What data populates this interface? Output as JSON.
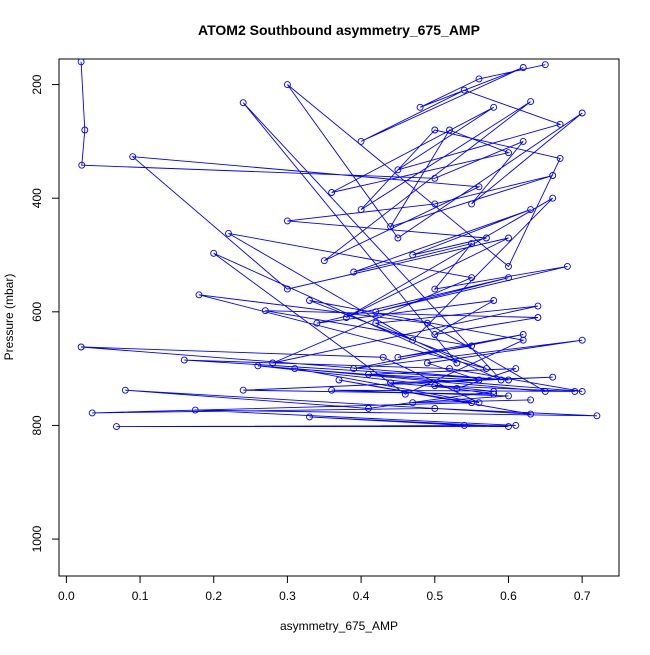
{
  "chart_data": {
    "type": "line",
    "title": "ATOM2 Southbound asymmetry_675_AMP",
    "xlabel": "asymmetry_675_AMP",
    "ylabel": "Pressure (mbar)",
    "xlim": [
      -0.01,
      0.75
    ],
    "ylim": [
      1065,
      155
    ],
    "y_reversed": true,
    "x_ticks": [
      "0.0",
      "0.1",
      "0.2",
      "0.3",
      "0.4",
      "0.5",
      "0.6",
      "0.7"
    ],
    "x_tick_values": [
      0.0,
      0.1,
      0.2,
      0.3,
      0.4,
      0.5,
      0.6,
      0.7
    ],
    "y_ticks": [
      "200",
      "400",
      "600",
      "800",
      "1000"
    ],
    "y_tick_values": [
      200,
      400,
      600,
      800,
      1000
    ],
    "grid": false,
    "color": "#0000ff",
    "series": [
      {
        "x": [
          0.02,
          0.025,
          0.021,
          0.5,
          0.62,
          0.55,
          0.7,
          0.45,
          0.3,
          0.6,
          0.67,
          0.5,
          0.4,
          0.63,
          0.35,
          0.56,
          0.09,
          0.3,
          0.6,
          0.38,
          0.66,
          0.47,
          0.22,
          0.55,
          0.28,
          0.64,
          0.42,
          0.59,
          0.24,
          0.53,
          0.2,
          0.46,
          0.62,
          0.33,
          0.57,
          0.18,
          0.49,
          0.65,
          0.31,
          0.56,
          0.43,
          0.02,
          0.6,
          0.16,
          0.52,
          0.7,
          0.26,
          0.58,
          0.41,
          0.08,
          0.63,
          0.37,
          0.55,
          0.035,
          0.5,
          0.72,
          0.175,
          0.61,
          0.068,
          0.6,
          0.33,
          0.54
        ],
        "y": [
          160,
          280,
          342,
          365,
          300,
          410,
          250,
          470,
          200,
          520,
          330,
          280,
          420,
          230,
          510,
          380,
          327,
          560,
          470,
          610,
          400,
          650,
          462,
          540,
          690,
          590,
          620,
          720,
          232,
          690,
          497,
          745,
          650,
          580,
          700,
          570,
          620,
          740,
          700,
          760,
          680,
          662,
          720,
          685,
          700,
          740,
          695,
          740,
          770,
          738,
          780,
          720,
          760,
          778,
          770,
          783,
          773,
          800,
          802,
          802,
          785,
          800
        ]
      },
      {
        "x": [
          0.65,
          0.56,
          0.48,
          0.62,
          0.4,
          0.54,
          0.67,
          0.45,
          0.58,
          0.36,
          0.6,
          0.52,
          0.44,
          0.66,
          0.5,
          0.3,
          0.57,
          0.47,
          0.63,
          0.39,
          0.55,
          0.5,
          0.68,
          0.42,
          0.6,
          0.34,
          0.58,
          0.5,
          0.64,
          0.27,
          0.55,
          0.45,
          0.62,
          0.39,
          0.7,
          0.49,
          0.56,
          0.41,
          0.61,
          0.53,
          0.44,
          0.66,
          0.24,
          0.58,
          0.5,
          0.69,
          0.36,
          0.6,
          0.47,
          0.63
        ],
        "y": [
          165,
          190,
          240,
          170,
          300,
          210,
          270,
          350,
          240,
          390,
          320,
          280,
          450,
          360,
          410,
          440,
          470,
          500,
          420,
          530,
          480,
          560,
          520,
          600,
          540,
          620,
          580,
          640,
          610,
          598,
          660,
          680,
          640,
          700,
          650,
          690,
          720,
          710,
          700,
          735,
          725,
          715,
          738,
          745,
          730,
          740,
          738,
          748,
          760,
          755
        ]
      }
    ]
  }
}
